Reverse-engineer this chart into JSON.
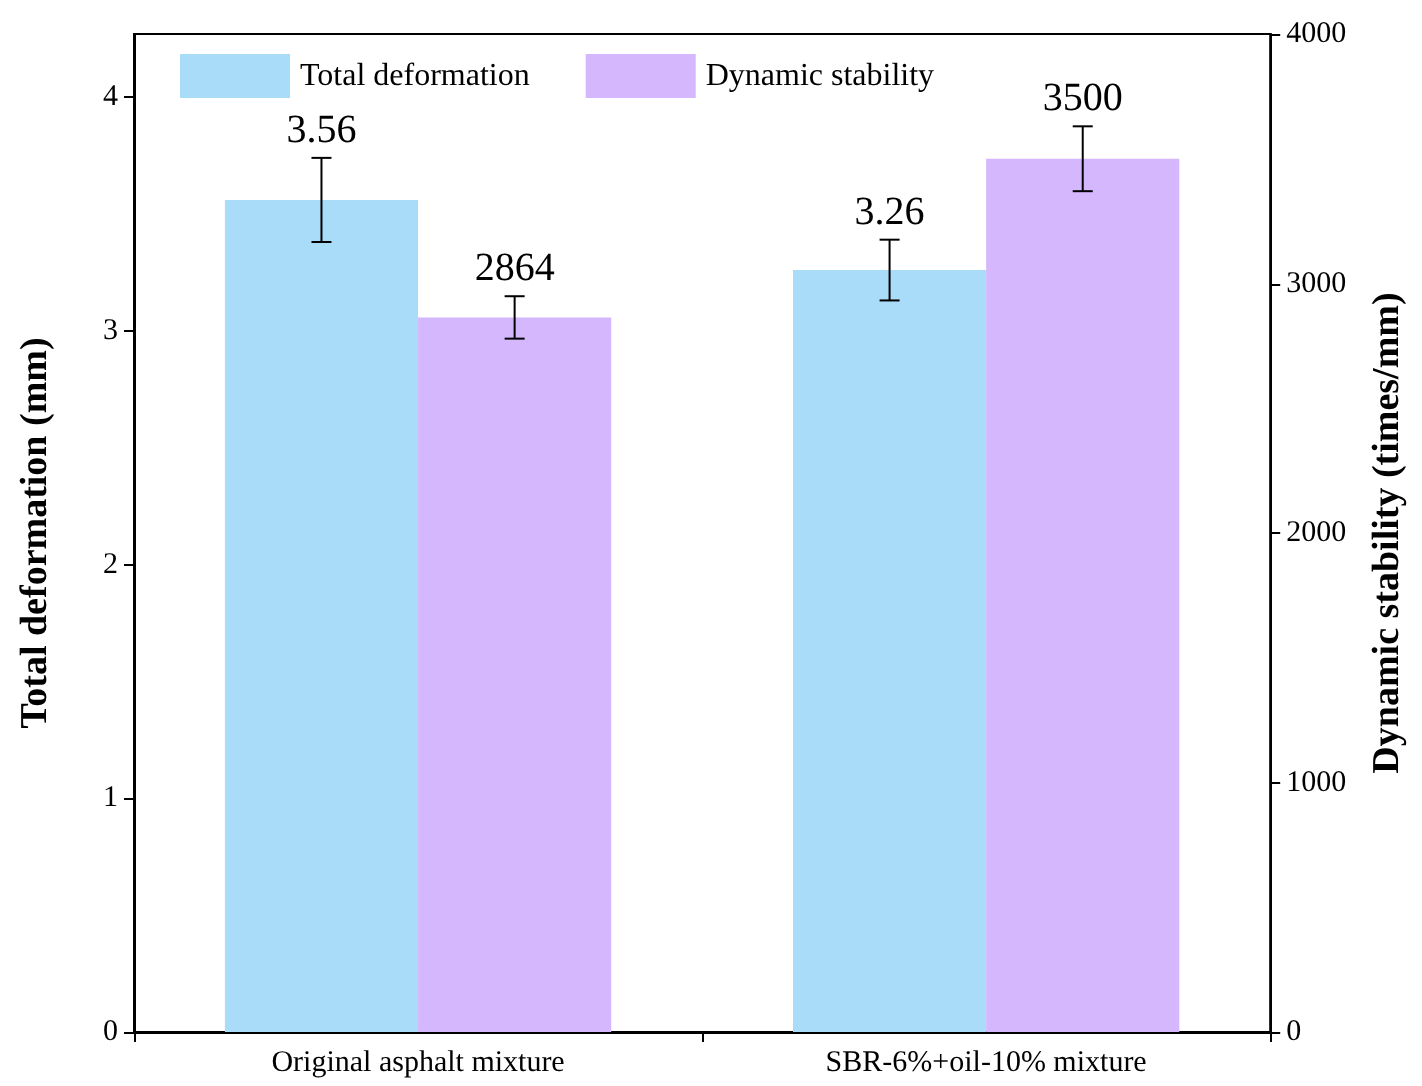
{
  "chart_data": {
    "type": "bar",
    "categories": [
      "Original asphalt mixture",
      "SBR-6%+oil-10% mixture"
    ],
    "ylabel": "Total deformation (mm)",
    "y2label": "Dynamic stability (times/mm)",
    "series": [
      {
        "name": "Total deformation",
        "color": "#a9dcf9",
        "values": [
          3.56,
          3.26
        ],
        "errors": [
          0.18,
          0.13
        ]
      },
      {
        "name": "Dynamic stability",
        "color": "#d4b7fc",
        "values": [
          2864,
          3500
        ],
        "errors": [
          85,
          130
        ],
        "axis": "y2"
      }
    ],
    "ylim": [
      0,
      4.27
    ],
    "yticks": [
      0,
      1,
      2,
      3,
      4
    ],
    "y2lim": [
      0,
      4000
    ],
    "y2ticks": [
      0,
      1000,
      2000,
      3000,
      4000
    ],
    "data_labels": true,
    "legend": "top",
    "grid": false
  }
}
